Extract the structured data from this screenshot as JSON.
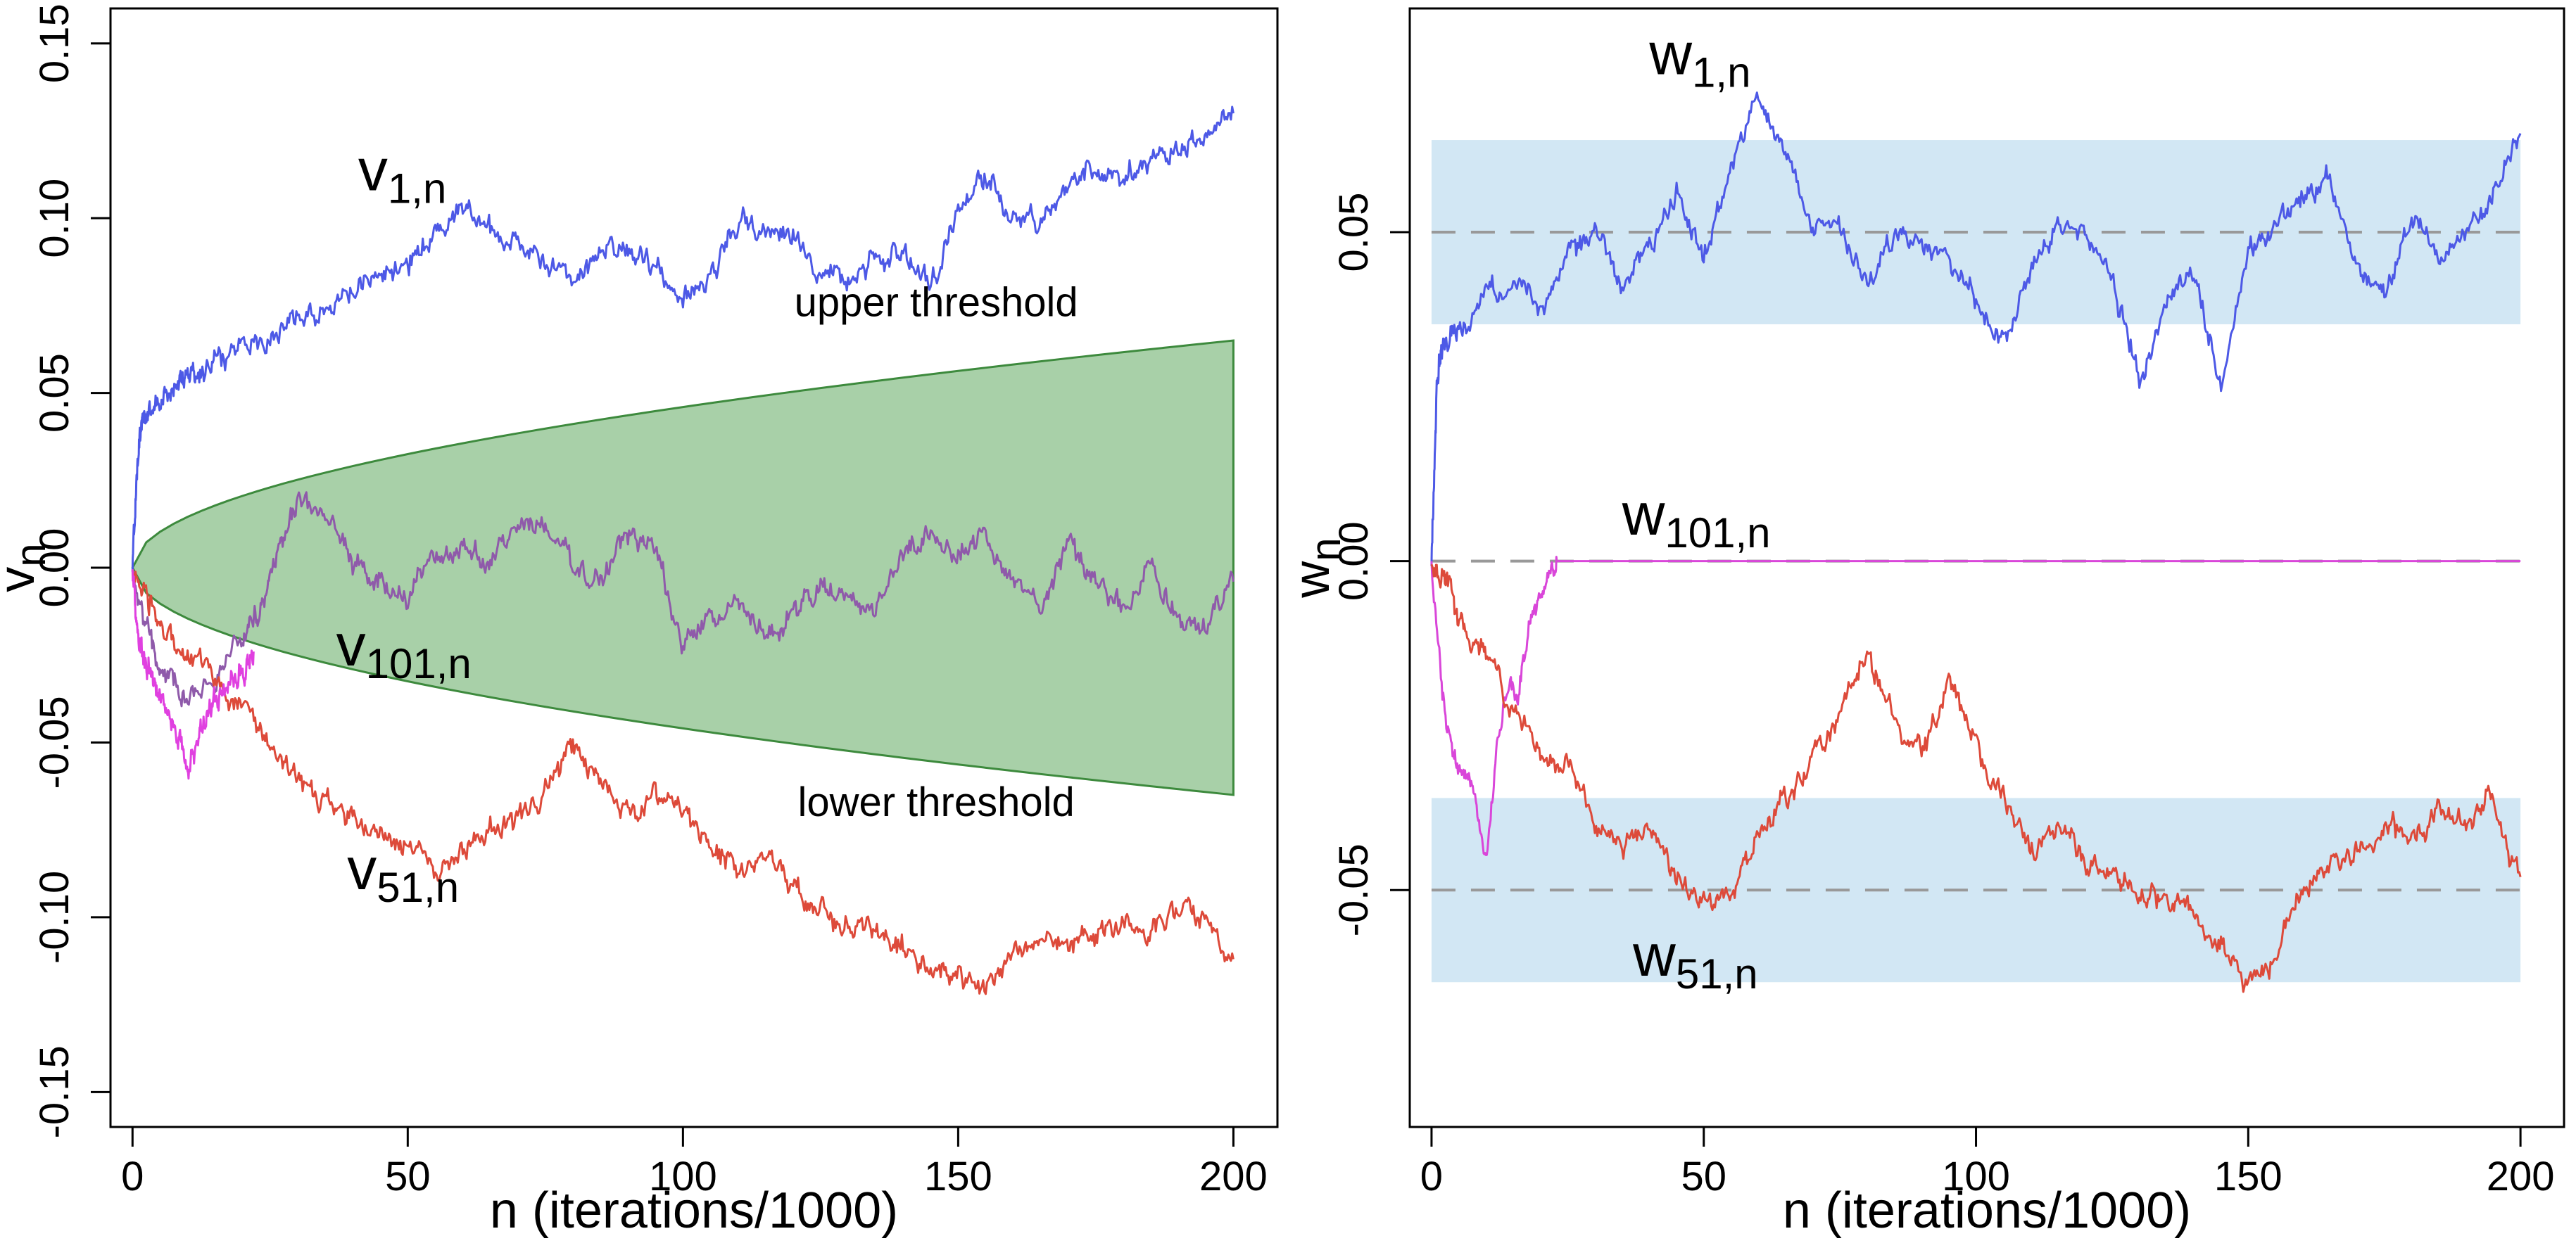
{
  "chart_data": [
    {
      "type": "line",
      "xlabel": "n (iterations/1000)",
      "ylabel": "v",
      "ylabel_sub": "n",
      "xlim": [
        -4,
        208
      ],
      "ylim": [
        -0.16,
        0.16
      ],
      "xticks": [
        0,
        50,
        100,
        150,
        200
      ],
      "yticks": [
        -0.15,
        -0.1,
        -0.05,
        0.0,
        0.05,
        0.1,
        0.15
      ],
      "ytick_labels": [
        "-0.15",
        "-0.10",
        "-0.05",
        "0.00",
        "0.05",
        "0.10",
        "0.15"
      ],
      "grid": false,
      "band": {
        "type": "sqrt",
        "upper_at_200": 0.065,
        "color": "#a8d0a8",
        "edge": "#3d8a3d"
      },
      "annotations": [
        {
          "text": "upper threshold",
          "x": 146,
          "y": 0.072
        },
        {
          "text": "lower threshold",
          "x": 146,
          "y": -0.071
        }
      ],
      "series": [
        {
          "name": "v",
          "sub": "1,n",
          "color": "#4d59e6",
          "label_pos": [
            41,
            0.108
          ],
          "x": [
            0,
            1,
            2,
            3,
            5,
            8,
            10,
            12,
            15,
            20,
            25,
            30,
            35,
            40,
            45,
            50,
            55,
            60,
            65,
            70,
            75,
            80,
            85,
            90,
            95,
            100,
            105,
            110,
            115,
            120,
            125,
            130,
            135,
            140,
            145,
            150,
            155,
            160,
            165,
            170,
            175,
            180,
            185,
            190,
            195,
            200
          ],
          "y": [
            0.0,
            0.035,
            0.042,
            0.045,
            0.048,
            0.052,
            0.056,
            0.055,
            0.06,
            0.064,
            0.066,
            0.072,
            0.075,
            0.078,
            0.084,
            0.087,
            0.095,
            0.104,
            0.097,
            0.092,
            0.088,
            0.082,
            0.09,
            0.092,
            0.086,
            0.078,
            0.083,
            0.1,
            0.095,
            0.096,
            0.085,
            0.083,
            0.088,
            0.09,
            0.08,
            0.104,
            0.112,
            0.102,
            0.098,
            0.11,
            0.114,
            0.112,
            0.115,
            0.12,
            0.125,
            0.13
          ]
        },
        {
          "name": "v",
          "sub": "101,n",
          "color": "#8f5aaa",
          "label_pos": [
            37,
            -0.028
          ],
          "x": [
            0,
            3,
            6,
            10,
            15,
            20,
            23,
            26,
            30,
            35,
            40,
            45,
            50,
            55,
            60,
            65,
            70,
            75,
            80,
            85,
            90,
            95,
            100,
            105,
            110,
            115,
            120,
            125,
            130,
            135,
            140,
            145,
            150,
            155,
            160,
            165,
            170,
            175,
            180,
            185,
            190,
            195,
            200
          ],
          "y": [
            0.0,
            -0.02,
            -0.032,
            -0.036,
            -0.03,
            -0.02,
            -0.012,
            0.005,
            0.02,
            0.016,
            0.002,
            -0.004,
            -0.01,
            0.003,
            0.006,
            0.002,
            0.013,
            0.008,
            0.0,
            -0.004,
            0.01,
            0.003,
            -0.022,
            -0.014,
            -0.01,
            -0.018,
            -0.015,
            -0.005,
            -0.01,
            -0.012,
            0.005,
            0.01,
            0.002,
            0.009,
            -0.006,
            -0.01,
            0.006,
            -0.004,
            -0.012,
            0.0,
            -0.014,
            -0.018,
            -0.004
          ]
        },
        {
          "name": "v",
          "sub": "51,n",
          "color": "#dd4a3a",
          "label_pos": [
            39,
            -0.092
          ],
          "x": [
            0,
            3,
            6,
            10,
            15,
            20,
            25,
            30,
            35,
            40,
            45,
            50,
            55,
            60,
            65,
            70,
            75,
            80,
            85,
            90,
            95,
            100,
            105,
            110,
            115,
            120,
            125,
            130,
            135,
            140,
            145,
            150,
            155,
            160,
            165,
            170,
            175,
            180,
            185,
            190,
            195,
            200
          ],
          "y": [
            0.0,
            -0.012,
            -0.02,
            -0.024,
            -0.032,
            -0.04,
            -0.05,
            -0.06,
            -0.068,
            -0.072,
            -0.076,
            -0.08,
            -0.086,
            -0.082,
            -0.076,
            -0.072,
            -0.064,
            -0.05,
            -0.062,
            -0.07,
            -0.066,
            -0.068,
            -0.082,
            -0.088,
            -0.082,
            -0.09,
            -0.1,
            -0.102,
            -0.104,
            -0.108,
            -0.114,
            -0.116,
            -0.12,
            -0.11,
            -0.106,
            -0.108,
            -0.104,
            -0.1,
            -0.104,
            -0.098,
            -0.1,
            -0.112
          ]
        },
        {
          "name": "",
          "sub": "",
          "color": "#e040e0",
          "x": [
            0,
            1,
            2,
            3,
            5,
            8,
            10,
            12,
            14,
            16,
            18,
            20,
            22
          ],
          "y": [
            0.0,
            -0.02,
            -0.026,
            -0.03,
            -0.036,
            -0.046,
            -0.058,
            -0.048,
            -0.04,
            -0.036,
            -0.032,
            -0.03,
            -0.024
          ]
        }
      ]
    },
    {
      "type": "line",
      "xlabel": "n (iterations/1000)",
      "ylabel": "w",
      "ylabel_sub": "n",
      "xlim": [
        -4,
        208
      ],
      "ylim": [
        -0.086,
        0.084
      ],
      "xticks": [
        0,
        50,
        100,
        150,
        200
      ],
      "yticks": [
        -0.05,
        0.0,
        0.05
      ],
      "ytick_labels": [
        "-0.05",
        "0.00",
        "0.05"
      ],
      "grid": false,
      "bands": [
        {
          "y0": 0.036,
          "y1": 0.064,
          "color": "#d2e7f4"
        },
        {
          "y0": -0.064,
          "y1": -0.036,
          "color": "#d2e7f4"
        }
      ],
      "reference_lines": [
        0.05,
        0.0,
        -0.05
      ],
      "series": [
        {
          "name": "w",
          "sub": "1,n",
          "color": "#4d59e6",
          "label_pos": [
            40,
            0.074
          ],
          "x": [
            0,
            1,
            2,
            5,
            10,
            15,
            20,
            25,
            30,
            35,
            40,
            45,
            50,
            55,
            60,
            65,
            70,
            75,
            80,
            85,
            90,
            95,
            100,
            105,
            110,
            115,
            120,
            125,
            130,
            135,
            140,
            145,
            150,
            155,
            160,
            165,
            170,
            175,
            180,
            185,
            190,
            195,
            200
          ],
          "y": [
            0.0,
            0.028,
            0.032,
            0.036,
            0.04,
            0.044,
            0.038,
            0.046,
            0.05,
            0.042,
            0.048,
            0.056,
            0.046,
            0.06,
            0.07,
            0.062,
            0.052,
            0.05,
            0.042,
            0.05,
            0.048,
            0.046,
            0.04,
            0.034,
            0.044,
            0.052,
            0.05,
            0.042,
            0.028,
            0.04,
            0.044,
            0.026,
            0.046,
            0.05,
            0.056,
            0.058,
            0.046,
            0.04,
            0.052,
            0.046,
            0.05,
            0.056,
            0.065
          ]
        },
        {
          "name": "w",
          "sub": "101,n",
          "color": "#d946d9",
          "label_pos": [
            35,
            0.004
          ],
          "x": [
            0,
            2,
            4,
            6,
            8,
            10,
            12,
            14,
            16,
            18,
            20,
            22,
            23,
            60,
            100,
            150,
            200
          ],
          "y": [
            0.0,
            -0.02,
            -0.03,
            -0.032,
            -0.036,
            -0.046,
            -0.028,
            -0.018,
            -0.02,
            -0.01,
            -0.006,
            -0.002,
            0.0,
            0.0,
            0.0,
            0.0,
            0.0
          ]
        },
        {
          "name": "w",
          "sub": "51,n",
          "color": "#dd4a3a",
          "label_pos": [
            37,
            -0.063
          ],
          "x": [
            0,
            3,
            6,
            10,
            15,
            20,
            25,
            30,
            35,
            40,
            45,
            50,
            55,
            60,
            65,
            70,
            75,
            80,
            85,
            90,
            95,
            100,
            105,
            110,
            115,
            120,
            125,
            130,
            135,
            140,
            145,
            150,
            155,
            160,
            165,
            170,
            175,
            180,
            185,
            190,
            195,
            200
          ],
          "y": [
            0.0,
            -0.004,
            -0.01,
            -0.014,
            -0.022,
            -0.03,
            -0.03,
            -0.04,
            -0.044,
            -0.04,
            -0.048,
            -0.052,
            -0.05,
            -0.042,
            -0.036,
            -0.03,
            -0.024,
            -0.014,
            -0.024,
            -0.03,
            -0.018,
            -0.028,
            -0.036,
            -0.044,
            -0.04,
            -0.046,
            -0.048,
            -0.05,
            -0.052,
            -0.054,
            -0.058,
            -0.064,
            -0.06,
            -0.05,
            -0.046,
            -0.044,
            -0.04,
            -0.042,
            -0.038,
            -0.04,
            -0.036,
            -0.048
          ]
        }
      ]
    }
  ]
}
